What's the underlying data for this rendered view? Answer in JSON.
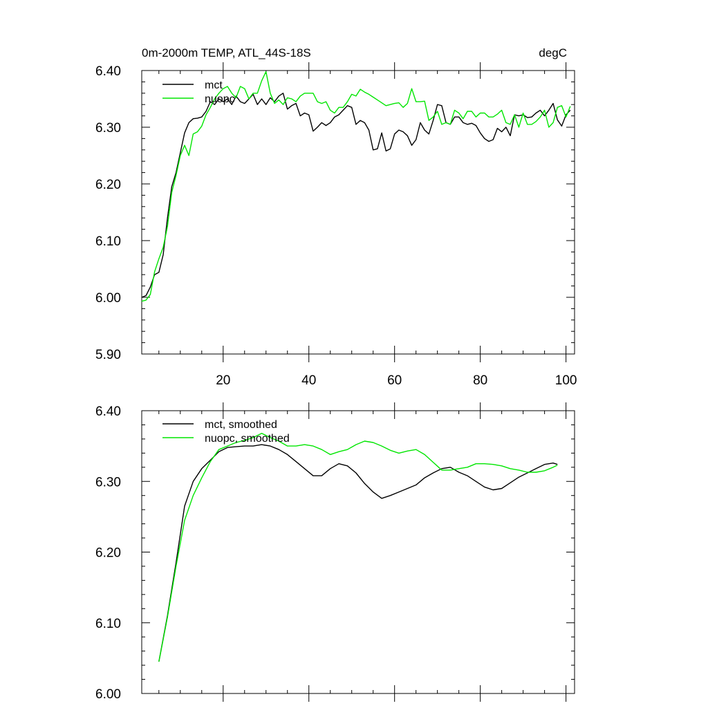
{
  "chart_data": [
    {
      "type": "line",
      "title": "0m-2000m TEMP, ATL_44S-18S",
      "units": "degC",
      "xlabel": "",
      "ylabel": "",
      "xlim": [
        1,
        102
      ],
      "ylim": [
        5.9,
        6.4
      ],
      "xticks": [
        20,
        40,
        60,
        80,
        100
      ],
      "xtick_labels": [
        "20",
        "40",
        "60",
        "80",
        "100"
      ],
      "yticks": [
        5.9,
        6.0,
        6.1,
        6.2,
        6.3,
        6.4
      ],
      "ytick_labels": [
        "5.90",
        "6.00",
        "6.10",
        "6.20",
        "6.30",
        "6.40"
      ],
      "grid": false,
      "legend": "top-left",
      "series": [
        {
          "name": "mct",
          "color": "#000000",
          "x": [
            1,
            2,
            3,
            4,
            5,
            6,
            7,
            8,
            9,
            10,
            11,
            12,
            13,
            14,
            15,
            16,
            17,
            18,
            19,
            20,
            21,
            22,
            23,
            24,
            25,
            26,
            27,
            28,
            29,
            30,
            31,
            32,
            33,
            34,
            35,
            36,
            37,
            38,
            39,
            40,
            41,
            42,
            43,
            44,
            45,
            46,
            47,
            48,
            49,
            50,
            51,
            52,
            53,
            54,
            55,
            56,
            57,
            58,
            59,
            60,
            61,
            62,
            63,
            64,
            65,
            66,
            67,
            68,
            69,
            70,
            71,
            72,
            73,
            74,
            75,
            76,
            77,
            78,
            79,
            80,
            81,
            82,
            83,
            84,
            85,
            86,
            87,
            88,
            89,
            90,
            91,
            92,
            93,
            94,
            95,
            96,
            97,
            98,
            99,
            100,
            101
          ],
          "values": [
            6.0,
            6.003,
            6.018,
            6.04,
            6.044,
            6.075,
            6.14,
            6.195,
            6.22,
            6.255,
            6.29,
            6.308,
            6.315,
            6.316,
            6.318,
            6.328,
            6.345,
            6.34,
            6.35,
            6.345,
            6.35,
            6.34,
            6.355,
            6.345,
            6.342,
            6.35,
            6.358,
            6.34,
            6.35,
            6.34,
            6.352,
            6.345,
            6.355,
            6.36,
            6.332,
            6.338,
            6.342,
            6.32,
            6.325,
            6.322,
            6.293,
            6.3,
            6.308,
            6.303,
            6.308,
            6.318,
            6.322,
            6.33,
            6.338,
            6.335,
            6.305,
            6.312,
            6.308,
            6.295,
            6.26,
            6.262,
            6.29,
            6.258,
            6.262,
            6.288,
            6.295,
            6.292,
            6.285,
            6.268,
            6.278,
            6.308,
            6.295,
            6.288,
            6.312,
            6.34,
            6.338,
            6.308,
            6.305,
            6.318,
            6.318,
            6.308,
            6.305,
            6.307,
            6.303,
            6.29,
            6.28,
            6.275,
            6.278,
            6.298,
            6.292,
            6.3,
            6.285,
            6.322,
            6.32,
            6.322,
            6.317,
            6.318,
            6.325,
            6.33,
            6.32,
            6.33,
            6.342,
            6.313,
            6.302,
            6.322,
            6.33
          ]
        },
        {
          "name": "nuopc",
          "color": "#00e600",
          "x": [
            1,
            2,
            3,
            4,
            5,
            6,
            7,
            8,
            9,
            10,
            11,
            12,
            13,
            14,
            15,
            16,
            17,
            18,
            19,
            20,
            21,
            22,
            23,
            24,
            25,
            26,
            27,
            28,
            29,
            30,
            31,
            32,
            33,
            34,
            35,
            36,
            37,
            38,
            39,
            40,
            41,
            42,
            43,
            44,
            45,
            46,
            47,
            48,
            49,
            50,
            51,
            52,
            53,
            54,
            55,
            56,
            57,
            58,
            59,
            60,
            61,
            62,
            63,
            64,
            65,
            66,
            67,
            68,
            69,
            70,
            71,
            72,
            73,
            74,
            75,
            76,
            77,
            78,
            79,
            80,
            81,
            82,
            83,
            84,
            85,
            86,
            87,
            88,
            89,
            90,
            91,
            92,
            93,
            94,
            95,
            96,
            97,
            98,
            99,
            100,
            101
          ],
          "values": [
            5.993,
            5.995,
            6.005,
            6.045,
            6.068,
            6.088,
            6.125,
            6.185,
            6.215,
            6.25,
            6.268,
            6.25,
            6.288,
            6.292,
            6.302,
            6.322,
            6.335,
            6.35,
            6.36,
            6.368,
            6.372,
            6.36,
            6.352,
            6.372,
            6.368,
            6.35,
            6.36,
            6.36,
            6.382,
            6.398,
            6.36,
            6.342,
            6.348,
            6.34,
            6.352,
            6.35,
            6.345,
            6.355,
            6.36,
            6.36,
            6.36,
            6.345,
            6.342,
            6.345,
            6.33,
            6.325,
            6.335,
            6.335,
            6.345,
            6.358,
            6.355,
            6.367,
            6.362,
            6.358,
            6.353,
            6.348,
            6.343,
            6.338,
            6.34,
            6.342,
            6.343,
            6.335,
            6.342,
            6.368,
            6.345,
            6.345,
            6.346,
            6.312,
            6.318,
            6.328,
            6.305,
            6.308,
            6.305,
            6.33,
            6.325,
            6.315,
            6.328,
            6.328,
            6.318,
            6.325,
            6.325,
            6.318,
            6.318,
            6.323,
            6.33,
            6.308,
            6.305,
            6.322,
            6.3,
            6.325,
            6.305,
            6.305,
            6.31,
            6.318,
            6.33,
            6.3,
            6.308,
            6.335,
            6.338,
            6.318,
            6.337
          ]
        }
      ]
    },
    {
      "type": "line",
      "title": "",
      "xlabel": "",
      "ylabel": "",
      "xlim": [
        1,
        102
      ],
      "ylim": [
        6.0,
        6.4
      ],
      "xticks": [
        20,
        40,
        60,
        80,
        100
      ],
      "xtick_labels": [
        "",
        "",
        "",
        "",
        ""
      ],
      "yticks": [
        6.0,
        6.1,
        6.2,
        6.3,
        6.4
      ],
      "ytick_labels": [
        "6.00",
        "6.10",
        "6.20",
        "6.30",
        "6.40"
      ],
      "grid": false,
      "legend": "top-left",
      "series": [
        {
          "name": "mct, smoothed",
          "color": "#000000",
          "x": [
            5,
            7,
            9,
            11,
            13,
            15,
            17,
            19,
            21,
            23,
            25,
            27,
            29,
            31,
            33,
            35,
            37,
            39,
            41,
            43,
            45,
            47,
            49,
            51,
            53,
            55,
            57,
            59,
            61,
            63,
            65,
            67,
            69,
            71,
            73,
            75,
            77,
            79,
            81,
            83,
            85,
            87,
            89,
            91,
            93,
            95,
            97,
            98
          ],
          "values": [
            6.045,
            6.11,
            6.185,
            6.265,
            6.3,
            6.318,
            6.33,
            6.342,
            6.348,
            6.349,
            6.35,
            6.35,
            6.352,
            6.35,
            6.345,
            6.338,
            6.328,
            6.318,
            6.308,
            6.308,
            6.318,
            6.325,
            6.322,
            6.312,
            6.297,
            6.285,
            6.276,
            6.28,
            6.285,
            6.29,
            6.295,
            6.305,
            6.312,
            6.318,
            6.32,
            6.313,
            6.308,
            6.3,
            6.292,
            6.288,
            6.29,
            6.298,
            6.306,
            6.312,
            6.318,
            6.324,
            6.326,
            6.324
          ]
        },
        {
          "name": "nuopc, smoothed",
          "color": "#00e600",
          "x": [
            5,
            7,
            9,
            11,
            13,
            15,
            17,
            19,
            21,
            23,
            25,
            27,
            29,
            31,
            33,
            35,
            37,
            39,
            41,
            43,
            45,
            47,
            49,
            51,
            53,
            55,
            57,
            59,
            61,
            63,
            65,
            67,
            69,
            71,
            73,
            75,
            77,
            79,
            81,
            83,
            85,
            87,
            89,
            91,
            93,
            95,
            97,
            98
          ],
          "values": [
            6.045,
            6.108,
            6.18,
            6.245,
            6.28,
            6.305,
            6.328,
            6.345,
            6.35,
            6.355,
            6.358,
            6.362,
            6.368,
            6.362,
            6.357,
            6.35,
            6.35,
            6.352,
            6.35,
            6.345,
            6.338,
            6.342,
            6.345,
            6.352,
            6.357,
            6.355,
            6.35,
            6.344,
            6.34,
            6.343,
            6.345,
            6.338,
            6.327,
            6.316,
            6.316,
            6.318,
            6.32,
            6.325,
            6.325,
            6.324,
            6.322,
            6.318,
            6.316,
            6.313,
            6.313,
            6.315,
            6.32,
            6.323
          ]
        }
      ]
    }
  ]
}
